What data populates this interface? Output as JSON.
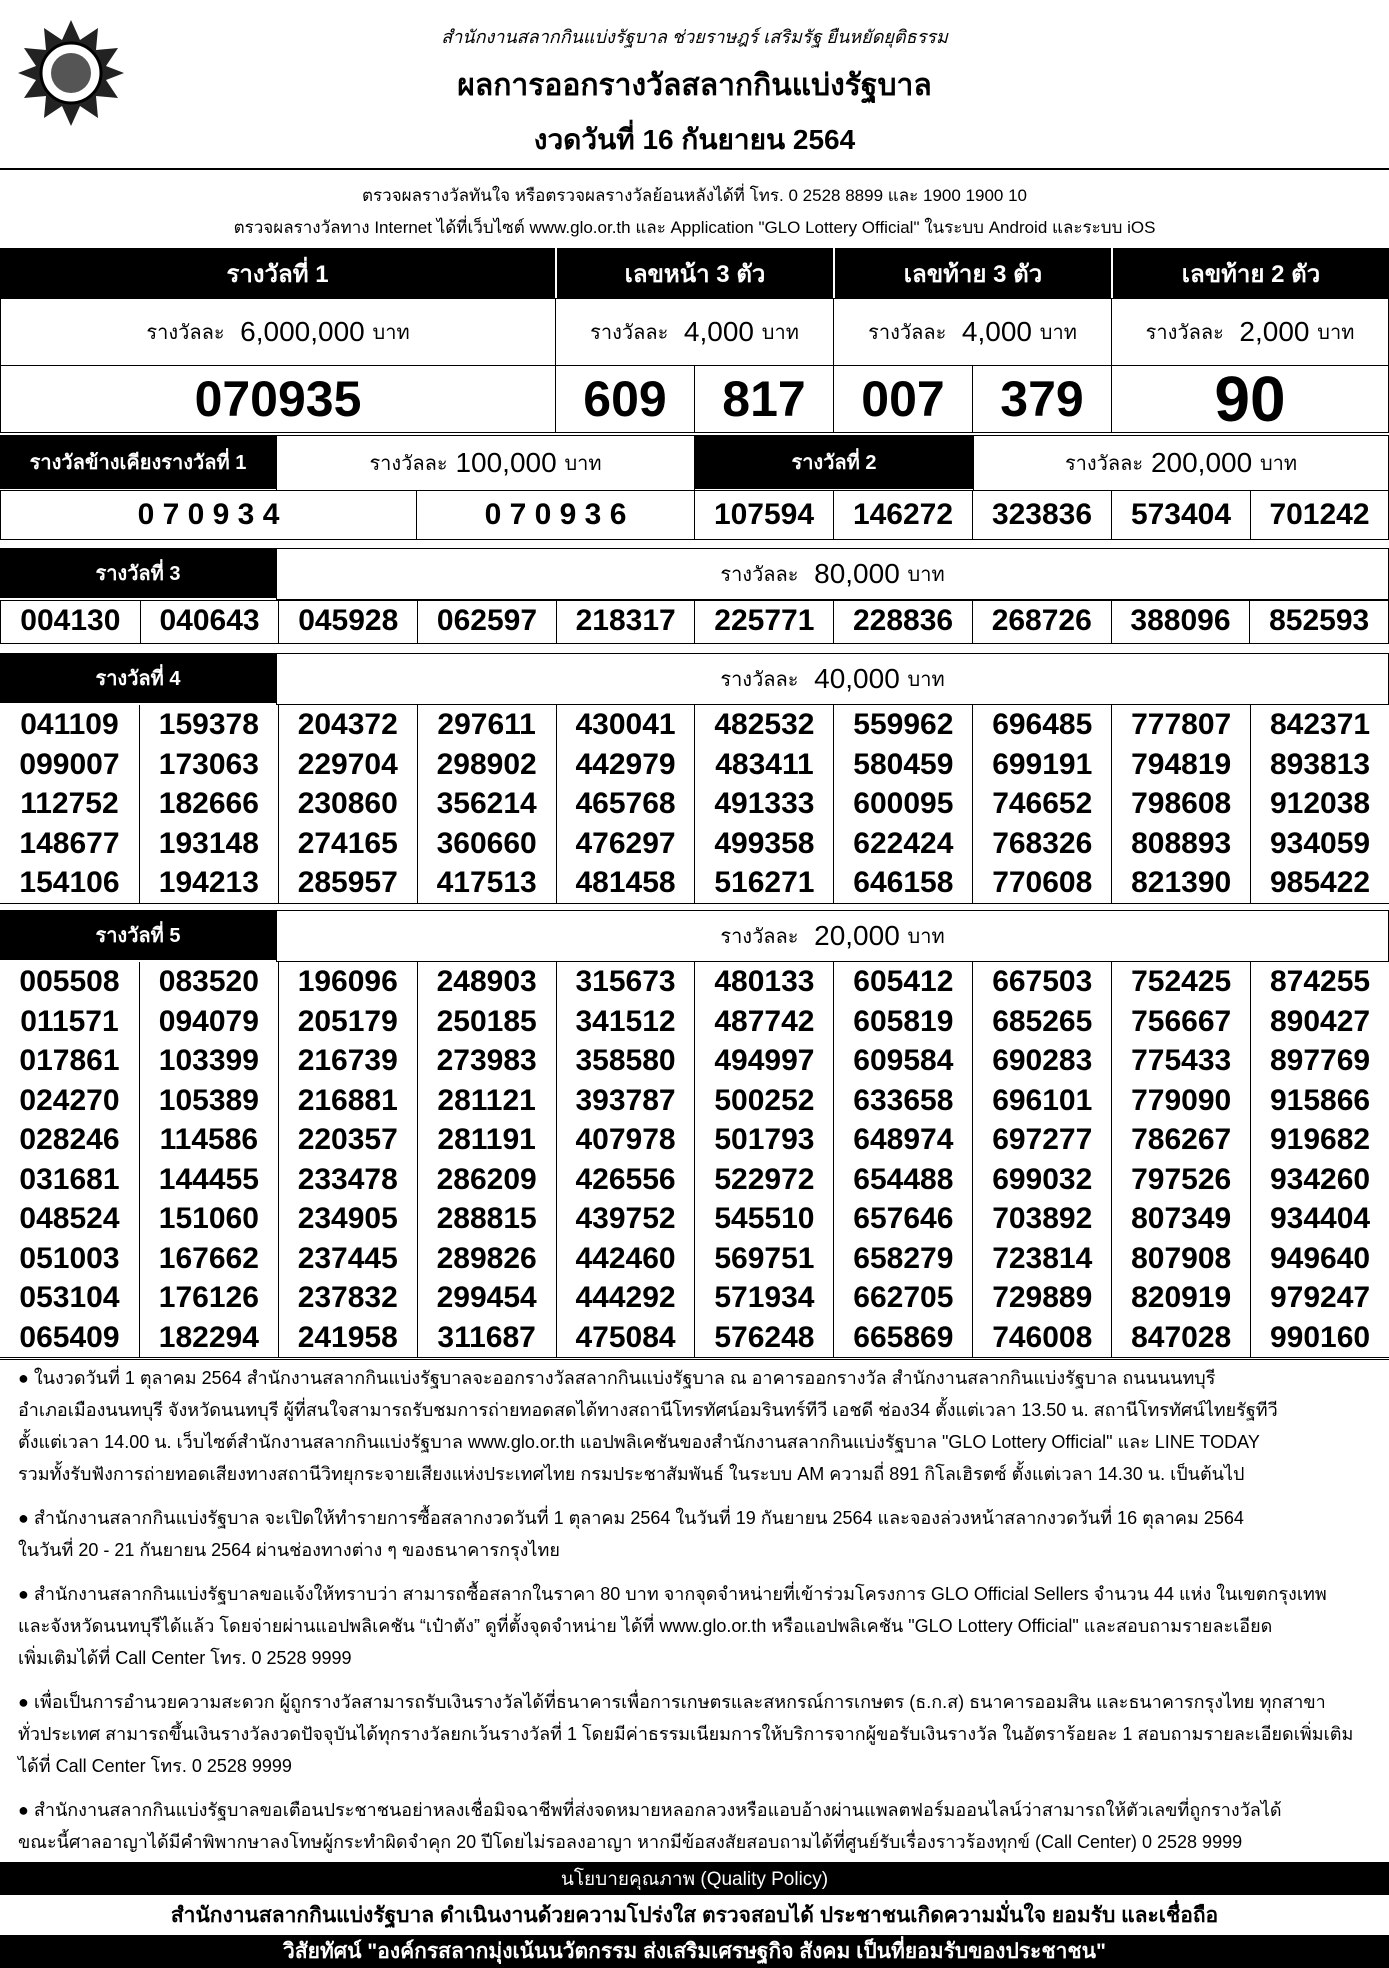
{
  "header": {
    "motto": "สำนักงานสลากกินแบ่งรัฐบาล  ช่วยราษฎร์  เสริมรัฐ  ยืนหยัดยุติธรรม",
    "title": "ผลการออกรางวัลสลากกินแบ่งรัฐบาล",
    "draw_date": "งวดวันที่ 16 กันยายน 2564",
    "logo": "glo-emblem"
  },
  "info": {
    "line1": "ตรวจผลรางวัลทันใจ  หรือตรวจผลรางวัลย้อนหลังได้ที่  โทร. 0 2528 8899 และ 1900 1900 10",
    "line2": "ตรวจผลรางวัลทาง Internet ได้ที่เว็บไซต์  www.glo.or.th และ Application \"GLO Lottery Official\" ในระบบ Android และระบบ iOS"
  },
  "prize1": {
    "label": "รางวัลที่ 1",
    "amount_prefix": "รางวัลละ",
    "amount": "6,000,000",
    "unit": "บาท",
    "number": "070935"
  },
  "front3": {
    "label": "เลขหน้า 3 ตัว",
    "amount_prefix": "รางวัลละ",
    "amount": "4,000",
    "unit": "บาท",
    "numbers": [
      "609",
      "817"
    ]
  },
  "back3": {
    "label": "เลขท้าย 3 ตัว",
    "amount_prefix": "รางวัลละ",
    "amount": "4,000",
    "unit": "บาท",
    "numbers": [
      "007",
      "379"
    ]
  },
  "last2": {
    "label": "เลขท้าย 2 ตัว",
    "amount_prefix": "รางวัลละ",
    "amount": "2,000",
    "unit": "บาท",
    "number": "90"
  },
  "near1": {
    "label": "รางวัลข้างเคียงรางวัลที่ 1",
    "amount_prefix": "รางวัลละ",
    "amount": "100,000",
    "unit": "บาท",
    "numbers": [
      "0 7 0 9 3 4",
      "0 7 0 9 3 6"
    ]
  },
  "prize2": {
    "label": "รางวัลที่  2",
    "amount_prefix": "รางวัลละ",
    "amount": "200,000",
    "unit": "บาท",
    "numbers": [
      "107594",
      "146272",
      "323836",
      "573404",
      "701242"
    ]
  },
  "prize3": {
    "label": "รางวัลที่  3",
    "amount_prefix": "รางวัลละ",
    "amount": "80,000",
    "unit": "บาท",
    "rows": [
      [
        "004130",
        "040643",
        "045928",
        "062597",
        "218317",
        "225771",
        "228836",
        "268726",
        "388096",
        "852593"
      ]
    ]
  },
  "prize4": {
    "label": "รางวัลที่  4",
    "amount_prefix": "รางวัลละ",
    "amount": "40,000",
    "unit": "บาท",
    "rows": [
      [
        "041109",
        "159378",
        "204372",
        "297611",
        "430041",
        "482532",
        "559962",
        "696485",
        "777807",
        "842371"
      ],
      [
        "099007",
        "173063",
        "229704",
        "298902",
        "442979",
        "483411",
        "580459",
        "699191",
        "794819",
        "893813"
      ],
      [
        "112752",
        "182666",
        "230860",
        "356214",
        "465768",
        "491333",
        "600095",
        "746652",
        "798608",
        "912038"
      ],
      [
        "148677",
        "193148",
        "274165",
        "360660",
        "476297",
        "499358",
        "622424",
        "768326",
        "808893",
        "934059"
      ],
      [
        "154106",
        "194213",
        "285957",
        "417513",
        "481458",
        "516271",
        "646158",
        "770608",
        "821390",
        "985422"
      ]
    ]
  },
  "prize5": {
    "label": "รางวัลที่  5",
    "amount_prefix": "รางวัลละ",
    "amount": "20,000",
    "unit": "บาท",
    "rows": [
      [
        "005508",
        "083520",
        "196096",
        "248903",
        "315673",
        "480133",
        "605412",
        "667503",
        "752425",
        "874255"
      ],
      [
        "011571",
        "094079",
        "205179",
        "250185",
        "341512",
        "487742",
        "605819",
        "685265",
        "756667",
        "890427"
      ],
      [
        "017861",
        "103399",
        "216739",
        "273983",
        "358580",
        "494997",
        "609584",
        "690283",
        "775433",
        "897769"
      ],
      [
        "024270",
        "105389",
        "216881",
        "281121",
        "393787",
        "500252",
        "633658",
        "696101",
        "779090",
        "915866"
      ],
      [
        "028246",
        "114586",
        "220357",
        "281191",
        "407978",
        "501793",
        "648974",
        "697277",
        "786267",
        "919682"
      ],
      [
        "031681",
        "144455",
        "233478",
        "286209",
        "426556",
        "522972",
        "654488",
        "699032",
        "797526",
        "934260"
      ],
      [
        "048524",
        "151060",
        "234905",
        "288815",
        "439752",
        "545510",
        "657646",
        "703892",
        "807349",
        "934404"
      ],
      [
        "051003",
        "167662",
        "237445",
        "289826",
        "442460",
        "569751",
        "658279",
        "723814",
        "807908",
        "949640"
      ],
      [
        "053104",
        "176126",
        "237832",
        "299454",
        "444292",
        "571934",
        "662705",
        "729889",
        "820919",
        "979247"
      ],
      [
        "065409",
        "182294",
        "241958",
        "311687",
        "475084",
        "576248",
        "665869",
        "746008",
        "847028",
        "990160"
      ]
    ]
  },
  "notes": [
    [
      "● ในงวดวันที่ 1 ตุลาคม 2564 สำนักงานสลากกินแบ่งรัฐบาลจะออกรางวัลสลากกินแบ่งรัฐบาล ณ อาคารออกรางวัล สำนักงานสลากกินแบ่งรัฐบาล ถนนนนทบุรี",
      "อำเภอเมืองนนทบุรี จังหวัดนนทบุรี ผู้ที่สนใจสามารถรับชมการถ่ายทอดสดได้ทางสถานีโทรทัศน์อมรินทร์ทีวี เอชดี ช่อง34 ตั้งแต่เวลา 13.50 น. สถานีโทรทัศน์ไทยรัฐทีวี",
      "ตั้งแต่เวลา 14.00 น. เว็บไซต์สำนักงานสลากกินแบ่งรัฐบาล www.glo.or.th แอปพลิเคชันของสำนักงานสลากกินแบ่งรัฐบาล \"GLO Lottery Official\" และ LINE TODAY",
      "รวมทั้งรับฟังการถ่ายทอดเสียงทางสถานีวิทยุกระจายเสียงแห่งประเทศไทย  กรมประชาสัมพันธ์ ในระบบ AM ความถี่ 891 กิโลเฮิรตซ์  ตั้งแต่เวลา 14.30 น. เป็นต้นไป"
    ],
    [
      "● สำนักงานสลากกินแบ่งรัฐบาล จะเปิดให้ทำรายการซื้อสลากงวดวันที่ 1 ตุลาคม 2564 ในวันที่ 19 กันยายน 2564 และจองล่วงหน้าสลากงวดวันที่ 16 ตุลาคม 2564",
      "ในวันที่ 20 - 21 กันยายน 2564 ผ่านช่องทางต่าง ๆ ของธนาคารกรุงไทย"
    ],
    [
      "● สำนักงานสลากกินแบ่งรัฐบาลขอแจ้งให้ทราบว่า สามารถซื้อสลากในราคา 80 บาท จากจุดจำหน่ายที่เข้าร่วมโครงการ GLO Official Sellers จำนวน 44 แห่ง ในเขตกรุงเทพ",
      "และจังหวัดนนทบุรีได้แล้ว โดยจ่ายผ่านแอปพลิเคชัน “เป๋าตัง” ดูที่ตั้งจุดจำหน่าย ได้ที่ www.glo.or.th หรือแอปพลิเคชัน \"GLO Lottery Official\" และสอบถามรายละเอียด",
      "เพิ่มเติมได้ที่ Call Center โทร. 0 2528 9999"
    ],
    [
      "● เพื่อเป็นการอำนวยความสะดวก ผู้ถูกรางวัลสามารถรับเงินรางวัลได้ที่ธนาคารเพื่อการเกษตรและสหกรณ์การเกษตร (ธ.ก.ส) ธนาคารออมสิน และธนาคารกรุงไทย ทุกสาขา",
      "ทั่วประเทศ สามารถขึ้นเงินรางวัลงวดปัจจุบันได้ทุกรางวัลยกเว้นรางวัลที่ 1 โดยมีค่าธรรมเนียมการให้บริการจากผู้ขอรับเงินรางวัล ในอัตราร้อยละ 1 สอบถามรายละเอียดเพิ่มเติม",
      "ได้ที่  Call Center โทร. 0 2528 9999"
    ],
    [
      "● สำนักงานสลากกินแบ่งรัฐบาลขอเตือนประชาชนอย่าหลงเชื่อมิจฉาชีพที่ส่งจดหมายหลอกลวงหรือแอบอ้างผ่านแพลตฟอร์มออนไลน์ว่าสามารถให้ตัวเลขที่ถูกรางวัลได้",
      "ขณะนี้ศาลอาญาได้มีคำพิพากษาลงโทษผู้กระทำผิดจำคุก 20 ปีโดยไม่รอลงอาญา หากมีข้อสงสัยสอบถามได้ที่ศูนย์รับเรื่องราวร้องทุกข์ (Call Center) 0 2528 9999"
    ]
  ],
  "footer": {
    "policy_title": "นโยบายคุณภาพ (Quality Policy)",
    "policy": "สำนักงานสลากกินแบ่งรัฐบาล ดำเนินงานด้วยความโปร่งใส ตรวจสอบได้ ประชาชนเกิดความมั่นใจ ยอมรับ และเชื่อถือ",
    "vision": "วิสัยทัศน์ \"องค์กรสลากมุ่งเน้นนวัตกรรม ส่งเสริมเศรษฐกิจ สังคม เป็นที่ยอมรับของประชาชน\""
  }
}
